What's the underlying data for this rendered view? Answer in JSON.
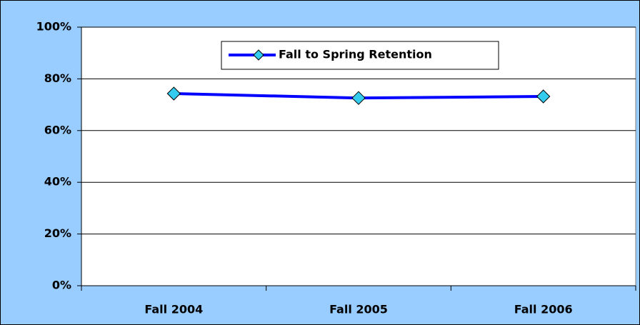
{
  "chart_data": {
    "type": "line",
    "categories": [
      "Fall 2004",
      "Fall 2005",
      "Fall 2006"
    ],
    "series": [
      {
        "name": "Fall to Spring Retention",
        "color": "#0000ff",
        "marker_color": "#33ccee",
        "values": [
          74.3,
          72.6,
          73.2
        ]
      }
    ],
    "ylim": [
      0,
      100
    ],
    "yticks": [
      {
        "value": 0,
        "label": "0%"
      },
      {
        "value": 20,
        "label": "20%"
      },
      {
        "value": 40,
        "label": "40%"
      },
      {
        "value": 60,
        "label": "60%"
      },
      {
        "value": 80,
        "label": "80%"
      },
      {
        "value": 100,
        "label": "100%"
      }
    ],
    "grid": true,
    "legend": "top"
  }
}
